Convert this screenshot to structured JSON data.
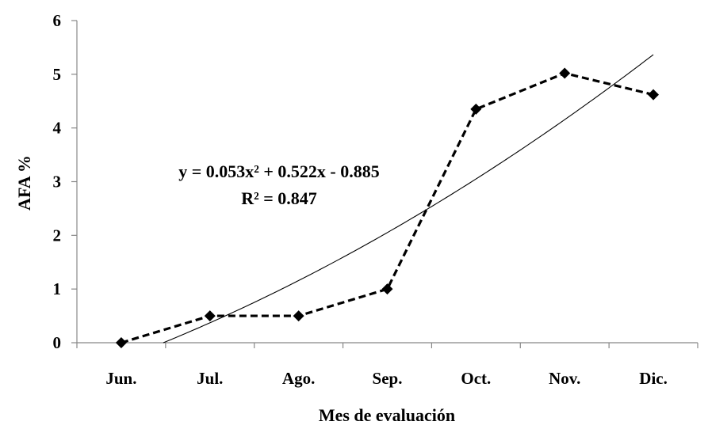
{
  "chart_data": {
    "type": "line",
    "xlabel": "Mes de  evaluación",
    "ylabel": "AFA %",
    "ylim": [
      0,
      6
    ],
    "yticks": [
      "0",
      "1",
      "2",
      "3",
      "4",
      "5",
      "6"
    ],
    "categories": [
      "Jun.",
      "Jul.",
      "Ago.",
      "Sep.",
      "Oct.",
      "Nov.",
      "Dic."
    ],
    "series": [
      {
        "values": [
          0,
          0.5,
          0.5,
          1,
          4.35,
          5.02,
          4.62
        ],
        "style": "dashed",
        "marker": "diamond",
        "color": "#000000"
      }
    ],
    "trendline": {
      "type": "polynomial",
      "coefficients": [
        0.053,
        0.522,
        -0.885
      ],
      "equation": "y = 0.053x² + 0.522x - 0.885",
      "r_squared": "R² = 0.847",
      "color": "#000000"
    },
    "grid": false,
    "legend": "none"
  }
}
